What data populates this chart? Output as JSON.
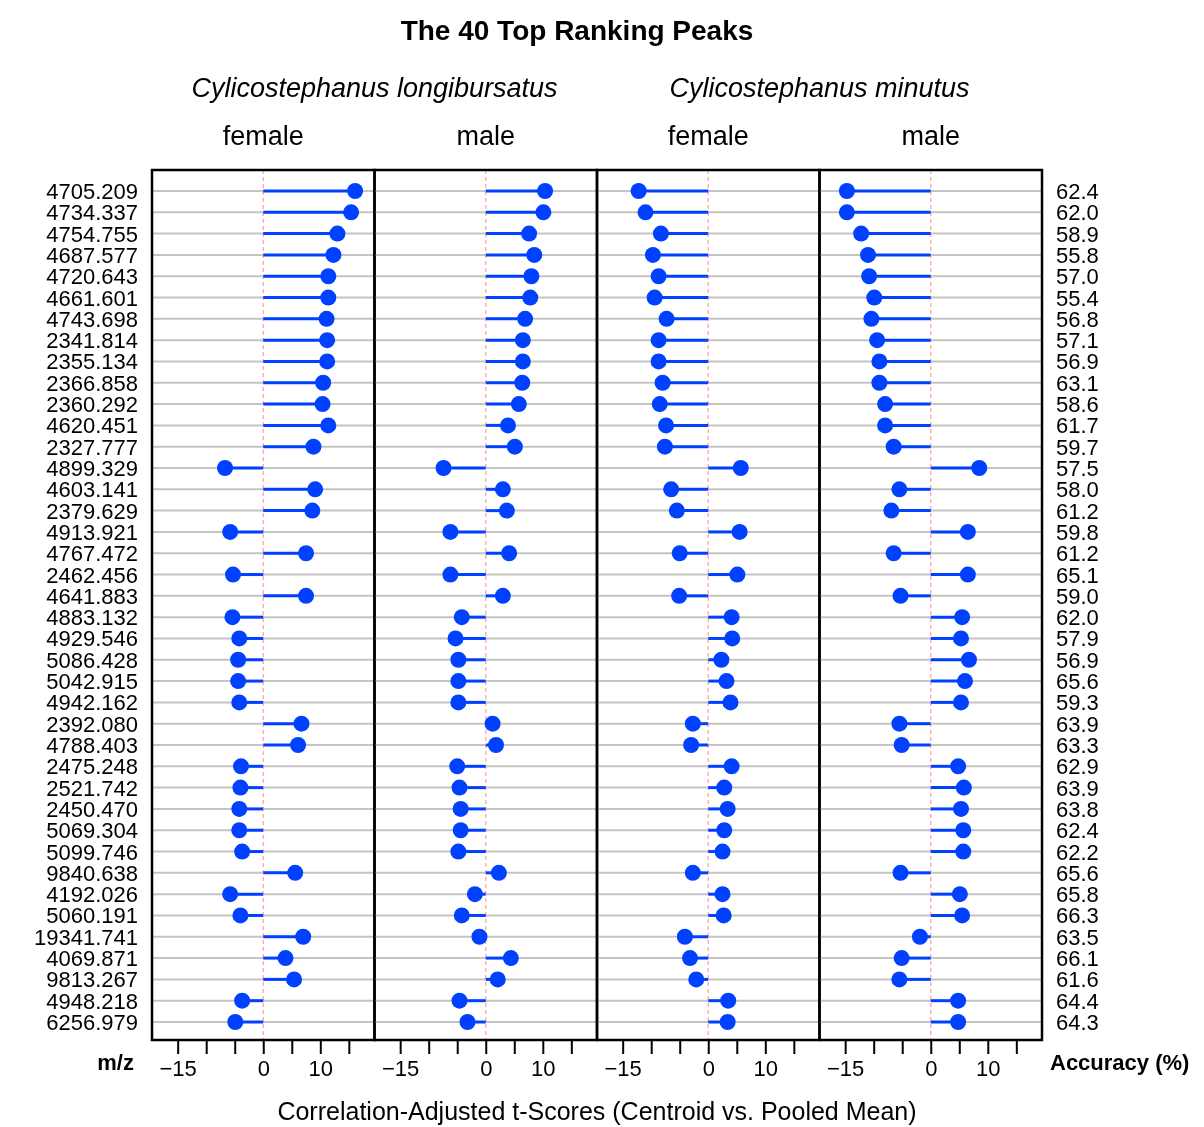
{
  "chart_data": [
    {
      "type": "lollipop",
      "orientation": "horizontal",
      "subtitle": "female",
      "annotations": [
        "Cylicostephanus longibursatus"
      ],
      "xlabel": "Correlation-Adjusted t-Scores (Centroid vs. Pooled Mean)",
      "ylabel": "m/z",
      "categories": [
        "4705.209",
        "4734.337",
        "4754.755",
        "4687.577",
        "4720.643",
        "4661.601",
        "4743.698",
        "2341.814",
        "2355.134",
        "2366.858",
        "2360.292",
        "4620.451",
        "2327.777",
        "4899.329",
        "4603.141",
        "2379.629",
        "4913.921",
        "4767.472",
        "2462.456",
        "4641.883",
        "4883.132",
        "4929.546",
        "5086.428",
        "5042.915",
        "4942.162",
        "2392.080",
        "4788.403",
        "2475.248",
        "2521.742",
        "2450.470",
        "5069.304",
        "5099.746",
        "9840.638",
        "4192.026",
        "5060.191",
        "19341.741",
        "4069.871",
        "9813.267",
        "4948.218",
        "6256.979"
      ],
      "values": [
        16.1,
        15.4,
        13.0,
        12.3,
        11.4,
        11.4,
        11.1,
        11.2,
        11.2,
        10.5,
        10.4,
        11.4,
        8.8,
        -6.7,
        9.1,
        8.6,
        -5.8,
        7.5,
        -5.3,
        7.5,
        -5.4,
        -4.2,
        -4.4,
        -4.4,
        -4.2,
        6.7,
        6.1,
        -3.9,
        -4.0,
        -4.2,
        -4.2,
        -3.7,
        5.6,
        -5.8,
        -4.0,
        7.0,
        3.9,
        5.4,
        -3.7,
        -4.9
      ],
      "color": "#0040ff",
      "marker": "circle",
      "grid": "y",
      "xlim": [
        -19.5,
        19.5
      ],
      "xticks": [
        -15,
        {
          "value": -10,
          "label": null
        },
        {
          "value": -5,
          "label": null
        },
        0,
        {
          "value": 5,
          "label": null
        },
        10,
        {
          "value": 15,
          "label": null
        }
      ],
      "ref_lines": [
        {
          "axis": "x",
          "value": 0,
          "color": "#ffb0b0",
          "line_style": "dashed"
        }
      ]
    },
    {
      "type": "lollipop",
      "orientation": "horizontal",
      "title": "The 40 Top Ranking Peaks",
      "subtitle": "male",
      "tick_labels": "x",
      "categories": [
        "4705.209",
        "4734.337",
        "4754.755",
        "4687.577",
        "4720.643",
        "4661.601",
        "4743.698",
        "2341.814",
        "2355.134",
        "2366.858",
        "2360.292",
        "4620.451",
        "2327.777",
        "4899.329",
        "4603.141",
        "2379.629",
        "4913.921",
        "4767.472",
        "2462.456",
        "4641.883",
        "4883.132",
        "4929.546",
        "5086.428",
        "5042.915",
        "4942.162",
        "2392.080",
        "4788.403",
        "2475.248",
        "2521.742",
        "2450.470",
        "5069.304",
        "5099.746",
        "9840.638",
        "4192.026",
        "5060.191",
        "19341.741",
        "4069.871",
        "9813.267",
        "4948.218",
        "6256.979"
      ],
      "values": [
        10.4,
        10.1,
        7.6,
        8.5,
        8.0,
        7.8,
        6.9,
        6.5,
        6.5,
        6.4,
        5.8,
        3.9,
        5.1,
        -7.4,
        3.0,
        3.7,
        -6.2,
        4.1,
        -6.2,
        3.0,
        -4.2,
        -5.3,
        -4.8,
        -4.8,
        -4.8,
        1.2,
        1.8,
        -5.0,
        -4.6,
        -4.4,
        -4.4,
        -4.8,
        2.3,
        -1.9,
        -4.2,
        -1.1,
        4.4,
        2.1,
        -4.6,
        -3.2
      ],
      "color": "#0040ff",
      "marker": "circle",
      "grid": "y",
      "xlim": [
        -19.5,
        19.5
      ],
      "xticks": [
        -15,
        {
          "value": -10,
          "label": null
        },
        {
          "value": -5,
          "label": null
        },
        0,
        {
          "value": 5,
          "label": null
        },
        10,
        {
          "value": 15,
          "label": null
        }
      ],
      "ref_lines": [
        {
          "axis": "x",
          "value": 0,
          "color": "#ffb0b0",
          "line_style": "dashed"
        }
      ]
    },
    {
      "type": "lollipop",
      "orientation": "horizontal",
      "subtitle": "female",
      "annotations": [
        "Cylicostephanus minutus"
      ],
      "tick_labels": "x",
      "categories": [
        "4705.209",
        "4734.337",
        "4754.755",
        "4687.577",
        "4720.643",
        "4661.601",
        "4743.698",
        "2341.814",
        "2355.134",
        "2366.858",
        "2360.292",
        "4620.451",
        "2327.777",
        "4899.329",
        "4603.141",
        "2379.629",
        "4913.921",
        "4767.472",
        "2462.456",
        "4641.883",
        "4883.132",
        "4929.546",
        "5086.428",
        "5042.915",
        "4942.162",
        "2392.080",
        "4788.403",
        "2475.248",
        "2521.742",
        "2450.470",
        "5069.304",
        "5099.746",
        "9840.638",
        "4192.026",
        "5060.191",
        "19341.741",
        "4069.871",
        "9813.267",
        "4948.218",
        "6256.979"
      ],
      "values": [
        -12.2,
        -11.0,
        -8.3,
        -9.7,
        -8.7,
        -9.4,
        -7.3,
        -8.7,
        -8.7,
        -8.0,
        -8.5,
        -7.4,
        -7.6,
        5.7,
        -6.5,
        -5.5,
        5.5,
        -5.0,
        5.1,
        -5.1,
        4.1,
        4.2,
        2.3,
        3.2,
        3.9,
        -2.7,
        -3.0,
        4.1,
        2.8,
        3.4,
        2.8,
        2.5,
        -2.7,
        2.5,
        2.7,
        -4.1,
        -3.2,
        -2.1,
        3.5,
        3.4
      ],
      "color": "#0040ff",
      "marker": "circle",
      "grid": "y",
      "xlim": [
        -19.5,
        19.5
      ],
      "xticks": [
        -15,
        {
          "value": -10,
          "label": null
        },
        {
          "value": -5,
          "label": null
        },
        0,
        {
          "value": 5,
          "label": null
        },
        10,
        {
          "value": 15,
          "label": null
        }
      ],
      "ref_lines": [
        {
          "axis": "x",
          "value": 0,
          "color": "#ffb0b0",
          "line_style": "dashed"
        }
      ]
    },
    {
      "type": "lollipop",
      "orientation": "horizontal",
      "subtitle": "male",
      "y2label": "Accuracy (%)",
      "tick_labels": "x",
      "categories": [
        "4705.209",
        "4734.337",
        "4754.755",
        "4687.577",
        "4720.643",
        "4661.601",
        "4743.698",
        "2341.814",
        "2355.134",
        "2366.858",
        "2360.292",
        "4620.451",
        "2327.777",
        "4899.329",
        "4603.141",
        "2379.629",
        "4913.921",
        "4767.472",
        "2462.456",
        "4641.883",
        "4883.132",
        "4929.546",
        "5086.428",
        "5042.915",
        "4942.162",
        "2392.080",
        "4788.403",
        "2475.248",
        "2521.742",
        "2450.470",
        "5069.304",
        "5099.746",
        "9840.638",
        "4192.026",
        "5060.191",
        "19341.741",
        "4069.871",
        "9813.267",
        "4948.218",
        "6256.979"
      ],
      "y2_categories": [
        "62.4",
        "62.0",
        "58.9",
        "55.8",
        "57.0",
        "55.4",
        "56.8",
        "57.1",
        "56.9",
        "63.1",
        "58.6",
        "61.7",
        "59.7",
        "57.5",
        "58.0",
        "61.2",
        "59.8",
        "61.2",
        "65.1",
        "59.0",
        "62.0",
        "57.9",
        "56.9",
        "65.6",
        "59.3",
        "63.9",
        "63.3",
        "62.9",
        "63.9",
        "63.8",
        "62.4",
        "62.2",
        "65.6",
        "65.8",
        "66.3",
        "63.5",
        "66.1",
        "61.6",
        "64.4",
        "64.3"
      ],
      "values": [
        -14.7,
        -14.7,
        -12.2,
        -11.0,
        -10.8,
        -9.9,
        -10.4,
        -9.4,
        -9.0,
        -9.0,
        -8.0,
        -8.0,
        -6.5,
        8.5,
        -5.5,
        -6.9,
        6.5,
        -6.5,
        6.5,
        -5.3,
        5.5,
        5.3,
        6.7,
        6.0,
        5.3,
        -5.5,
        -5.1,
        4.8,
        5.8,
        5.3,
        5.7,
        5.7,
        -5.3,
        5.1,
        5.5,
        -1.9,
        -5.1,
        -5.5,
        4.8,
        4.8
      ],
      "color": "#0040ff",
      "marker": "circle",
      "grid": "y",
      "xlim": [
        -19.5,
        19.5
      ],
      "xticks": [
        -15,
        {
          "value": -10,
          "label": null
        },
        {
          "value": -5,
          "label": null
        },
        0,
        {
          "value": 5,
          "label": null
        },
        10,
        {
          "value": 15,
          "label": null
        }
      ],
      "ref_lines": [
        {
          "axis": "x",
          "value": 0,
          "color": "#ffb0b0",
          "line_style": "dashed"
        }
      ]
    }
  ]
}
